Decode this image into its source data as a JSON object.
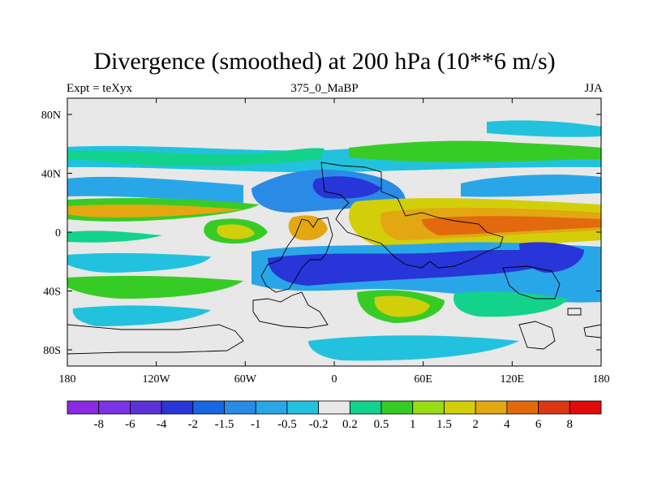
{
  "title": "Divergence (smoothed) at 200 hPa (10**6 m/s)",
  "left_string": "Expt = teXyx",
  "center_string": "375_0_MaBP",
  "right_string": "JJA",
  "map": {
    "lat_ticks": [
      "80N",
      "40N",
      "0",
      "40S",
      "80S"
    ],
    "lon_ticks": [
      "180",
      "120W",
      "60W",
      "0",
      "60E",
      "120E",
      "180"
    ]
  },
  "colorbar": {
    "labels": [
      "-8",
      "-6",
      "-4",
      "-2",
      "-1.5",
      "-1",
      "-0.5",
      "-0.2",
      "0.2",
      "0.5",
      "1",
      "1.5",
      "2",
      "4",
      "6",
      "8"
    ],
    "colors": [
      "#8a2be2",
      "#7a33e6",
      "#5a32d8",
      "#2835d8",
      "#1766e3",
      "#2a8be6",
      "#29a6e8",
      "#22c2de",
      "#e8e8e8",
      "#13d28c",
      "#37cc25",
      "#97dc14",
      "#d2cf0a",
      "#e2a711",
      "#e26a0d",
      "#db3712",
      "#e20b0b"
    ]
  }
}
